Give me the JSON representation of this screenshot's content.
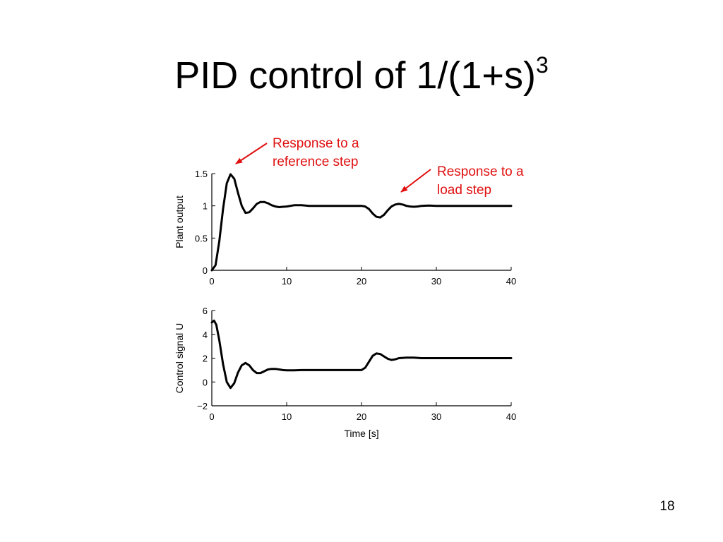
{
  "slide": {
    "title_main": "PID control of 1/(1+s)",
    "title_sup": "3",
    "page_number": "18"
  },
  "annotations": {
    "reference": "Response to a\nreference step",
    "load": "Response to a\nload step"
  },
  "colors": {
    "annotation": "#e01010",
    "curve": "#000000"
  },
  "chart_data": [
    {
      "type": "line",
      "ylabel": "Plant output",
      "xlabel": "",
      "xlim": [
        0,
        40
      ],
      "ylim": [
        0,
        1.5
      ],
      "xticks": [
        "0",
        "10",
        "20",
        "30",
        "40"
      ],
      "yticks": [
        "0",
        "0.5",
        "1",
        "1.5"
      ],
      "grid": false,
      "x": [
        0,
        0.5,
        1.0,
        1.5,
        2.0,
        2.5,
        3.0,
        3.5,
        4.0,
        4.5,
        5.0,
        5.5,
        6.0,
        6.5,
        7.0,
        7.5,
        8.0,
        8.5,
        9.0,
        9.5,
        10,
        11,
        12,
        13,
        14,
        15,
        16,
        17,
        18,
        19,
        20,
        20.5,
        21.0,
        21.5,
        22.0,
        22.5,
        23.0,
        23.5,
        24.0,
        24.5,
        25.0,
        25.5,
        26.0,
        26.5,
        27.0,
        27.5,
        28.0,
        29.0,
        30,
        32,
        34,
        36,
        38,
        40
      ],
      "series": [
        {
          "values": [
            0,
            0.08,
            0.45,
            0.95,
            1.35,
            1.49,
            1.42,
            1.2,
            1.0,
            0.89,
            0.9,
            0.96,
            1.03,
            1.06,
            1.06,
            1.04,
            1.01,
            0.99,
            0.98,
            0.985,
            0.99,
            1.01,
            1.01,
            1.0,
            1.0,
            1.0,
            1.0,
            1.0,
            1.0,
            1.0,
            1.0,
            0.99,
            0.95,
            0.88,
            0.83,
            0.82,
            0.86,
            0.93,
            0.99,
            1.02,
            1.03,
            1.02,
            1.0,
            0.99,
            0.985,
            0.99,
            1.0,
            1.005,
            1.0,
            1.0,
            1.0,
            1.0,
            1.0,
            1.0
          ]
        }
      ]
    },
    {
      "type": "line",
      "ylabel": "Control signal U",
      "xlabel": "Time [s]",
      "xlim": [
        0,
        40
      ],
      "ylim": [
        -2,
        6
      ],
      "xticks": [
        "0",
        "10",
        "20",
        "30",
        "40"
      ],
      "yticks": [
        "−2",
        "0",
        "2",
        "4",
        "6"
      ],
      "grid": false,
      "x": [
        0,
        0.3,
        0.6,
        1.0,
        1.5,
        2.0,
        2.5,
        3.0,
        3.5,
        4.0,
        4.5,
        5.0,
        5.5,
        6.0,
        6.5,
        7.0,
        7.5,
        8.0,
        8.5,
        9.0,
        9.5,
        10,
        11,
        12,
        13,
        14,
        15,
        16,
        17,
        18,
        19,
        20,
        20.5,
        21.0,
        21.5,
        22.0,
        22.5,
        23.0,
        23.5,
        24.0,
        24.5,
        25.0,
        26.0,
        27.0,
        28.0,
        29.0,
        30,
        32,
        34,
        36,
        38,
        40
      ],
      "series": [
        {
          "values": [
            5.0,
            5.15,
            4.8,
            3.5,
            1.5,
            0.0,
            -0.5,
            -0.1,
            0.8,
            1.4,
            1.6,
            1.4,
            1.0,
            0.75,
            0.75,
            0.9,
            1.05,
            1.1,
            1.1,
            1.05,
            1.0,
            0.98,
            0.98,
            1.0,
            1.0,
            1.0,
            1.0,
            1.0,
            1.0,
            1.0,
            1.0,
            1.0,
            1.2,
            1.7,
            2.2,
            2.4,
            2.35,
            2.15,
            1.95,
            1.85,
            1.9,
            2.0,
            2.05,
            2.05,
            2.0,
            2.0,
            2.0,
            2.0,
            2.0,
            2.0,
            2.0,
            2.0
          ]
        }
      ]
    }
  ]
}
